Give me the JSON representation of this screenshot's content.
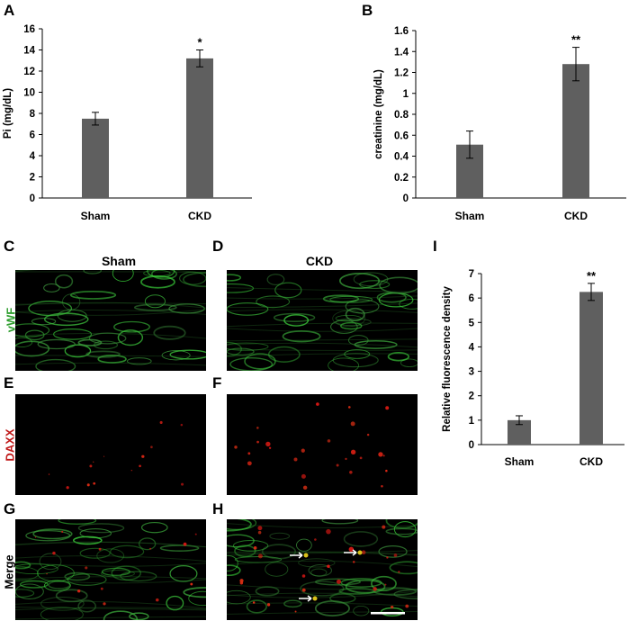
{
  "chart_data": [
    {
      "panel": "A",
      "type": "bar",
      "categories": [
        "Sham",
        "CKD"
      ],
      "values": [
        7.5,
        13.2
      ],
      "errors": [
        0.6,
        0.8
      ],
      "annotations": [
        "",
        "*"
      ],
      "ylabel": "Pi (mg/dL)",
      "ylim": [
        0,
        16
      ],
      "yticks": [
        "0",
        "2",
        "4",
        "6",
        "8",
        "10",
        "12",
        "14",
        "16"
      ]
    },
    {
      "panel": "B",
      "type": "bar",
      "categories": [
        "Sham",
        "CKD"
      ],
      "values": [
        0.51,
        1.28
      ],
      "errors": [
        0.13,
        0.16
      ],
      "annotations": [
        "",
        "**"
      ],
      "ylabel": "creatinine (mg/dL)",
      "ylim": [
        0,
        1.6
      ],
      "yticks": [
        "0",
        "0.2",
        "0.4",
        "0.6",
        "0.8",
        "1",
        "1.2",
        "1.4",
        "1.6"
      ]
    },
    {
      "panel": "I",
      "type": "bar",
      "categories": [
        "Sham",
        "CKD"
      ],
      "values": [
        1.0,
        6.25
      ],
      "errors": [
        0.18,
        0.35
      ],
      "annotations": [
        "",
        "**"
      ],
      "ylabel": "Relative fluorescence density",
      "ylim": [
        0,
        7
      ],
      "yticks": [
        "0",
        "1",
        "2",
        "3",
        "4",
        "5",
        "6",
        "7"
      ]
    }
  ],
  "panels": {
    "A": "A",
    "B": "B",
    "C": "C",
    "D": "D",
    "E": "E",
    "F": "F",
    "G": "G",
    "H": "H",
    "I": "I"
  },
  "images": {
    "col_sham": "Sham",
    "col_ckd": "CKD",
    "row_vwf": "vWF",
    "row_daxx": "DAXX",
    "row_merge": "Merge"
  },
  "colors": {
    "bar": "#5f5f5f",
    "vwf_label": "#2e9e2e",
    "daxx_label": "#c01818",
    "merge_label": "#000000"
  }
}
